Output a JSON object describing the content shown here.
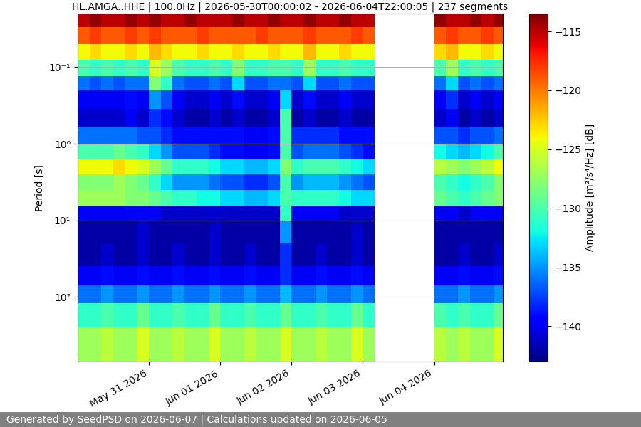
{
  "chart_data": {
    "type": "heatmap",
    "title": "HL.AMGA..HHE | 100.0Hz | 2026-05-30T00:00:02 - 2026-06-04T22:00:05 | 237 segments",
    "y_label": "Period [s]",
    "footer": "Generated by SeedPSD on 2026-06-07 | Calculations updated on 2026-06-05",
    "color": "jet",
    "log": "y",
    "grid": "y",
    "x": [
      "2026-05-30T00:00",
      "2026-05-30T04:00",
      "2026-05-30T08:00",
      "2026-05-30T12:00",
      "2026-05-30T16:00",
      "2026-05-30T20:00",
      "2026-05-31T00:00",
      "2026-05-31T04:00",
      "2026-05-31T08:00",
      "2026-05-31T12:00",
      "2026-05-31T16:00",
      "2026-05-31T20:00",
      "2026-06-01T00:00",
      "2026-06-01T04:00",
      "2026-06-01T08:00",
      "2026-06-01T12:00",
      "2026-06-01T16:00",
      "2026-06-01T20:00",
      "2026-06-02T00:00",
      "2026-06-02T04:00",
      "2026-06-02T08:00",
      "2026-06-02T12:00",
      "2026-06-02T16:00",
      "2026-06-02T20:00",
      "2026-06-03T00:00",
      "2026-06-03T04:00",
      "2026-06-03T08:00",
      "2026-06-03T12:00",
      "2026-06-03T16:00",
      "2026-06-03T20:00",
      "2026-06-04T00:00",
      "2026-06-04T04:00",
      "2026-06-04T08:00",
      "2026-06-04T12:00",
      "2026-06-04T16:00",
      "2026-06-04T20:00",
      "2026-06-05T00:00"
    ],
    "y": [
      0.02,
      0.03,
      0.05,
      0.08,
      0.13,
      0.2,
      0.35,
      0.6,
      1.0,
      1.6,
      2.5,
      4,
      6.5,
      10,
      20,
      40,
      70,
      120,
      250,
      700
    ],
    "xlim": [
      "2026-05-30T00:00",
      "2026-06-04T23:00"
    ],
    "xticks": [
      {
        "value": "2026-05-31T00:00",
        "label": "May 31 2026"
      },
      {
        "value": "2026-06-01T00:00",
        "label": "Jun 01 2026"
      },
      {
        "value": "2026-06-02T00:00",
        "label": "Jun 02 2026"
      },
      {
        "value": "2026-06-03T00:00",
        "label": "Jun 03 2026"
      },
      {
        "value": "2026-06-04T00:00",
        "label": "Jun 04 2026"
      }
    ],
    "ylim": [
      700,
      0.02
    ],
    "yticks": [
      {
        "value": 0.1,
        "label": "10⁻¹"
      },
      {
        "value": 1,
        "label": "10⁰"
      },
      {
        "value": 10,
        "label": "10¹"
      },
      {
        "value": 100,
        "label": "10²"
      }
    ],
    "colorbar": {
      "label": "Amplitude [m²/s⁴/Hz] [dB]",
      "range": [
        -143,
        -113.5
      ],
      "ticks": [
        {
          "value": -140,
          "label": "−140"
        },
        {
          "value": -135,
          "label": "−135"
        },
        {
          "value": -130,
          "label": "−130"
        },
        {
          "value": -125,
          "label": "−125"
        },
        {
          "value": -120,
          "label": "−120"
        },
        {
          "value": -115,
          "label": "−115"
        }
      ]
    },
    "cells": [
      [
        -115,
        -114,
        -115,
        -115,
        -114,
        -115,
        -114,
        -115,
        -115,
        -114,
        -115,
        -115,
        -115,
        -114,
        -115,
        -115,
        -114,
        -115,
        -115,
        -114,
        -115,
        -115,
        -114,
        -115,
        -115,
        null,
        null,
        null,
        null,
        null,
        -114,
        -115,
        -115,
        -114,
        -115,
        -114
      ],
      [
        -119,
        -118,
        -119,
        -119,
        -118,
        -119,
        -118,
        -119,
        -119,
        -119,
        -118,
        -119,
        -119,
        -119,
        -119,
        -118,
        -119,
        -119,
        -119,
        -118,
        -119,
        -119,
        -119,
        -118,
        -119,
        null,
        null,
        null,
        null,
        null,
        -119,
        -118,
        -119,
        -119,
        -118,
        -119
      ],
      [
        -124,
        -123,
        -124,
        -124,
        -123,
        -124,
        -122,
        -123,
        -124,
        -124,
        -123,
        -124,
        -124,
        -123,
        -124,
        -124,
        -123,
        -124,
        -124,
        -122,
        -124,
        -124,
        -123,
        -124,
        -124,
        null,
        null,
        null,
        null,
        null,
        -123,
        -122,
        -124,
        -124,
        -123,
        -124
      ],
      [
        -130,
        -131,
        -130,
        -131,
        -130,
        -131,
        -125,
        -127,
        -130,
        -131,
        -131,
        -130,
        -131,
        -128,
        -131,
        -131,
        -130,
        -130,
        -131,
        -127,
        -131,
        -131,
        -130,
        -131,
        -131,
        null,
        null,
        null,
        null,
        null,
        -130,
        -127,
        -131,
        -130,
        -131,
        -130
      ],
      [
        -136,
        -137,
        -136,
        -137,
        -136,
        -136,
        -128,
        -131,
        -136,
        -137,
        -137,
        -136,
        -137,
        -133,
        -137,
        -137,
        -136,
        -136,
        -137,
        -133,
        -137,
        -137,
        -136,
        -137,
        -137,
        null,
        null,
        null,
        null,
        null,
        -136,
        -133,
        -137,
        -136,
        -137,
        -136
      ],
      [
        -140,
        -140,
        -140,
        -140,
        -139,
        -140,
        -135,
        -137,
        -140,
        -141,
        -141,
        -140,
        -141,
        -139,
        -141,
        -141,
        -140,
        -133,
        -141,
        -139,
        -141,
        -141,
        -140,
        -141,
        -141,
        null,
        null,
        null,
        null,
        null,
        -140,
        -138,
        -141,
        -140,
        -141,
        -140
      ],
      [
        -141,
        -141,
        -141,
        -141,
        -140,
        -141,
        -138,
        -139,
        -141,
        -142,
        -142,
        -141,
        -142,
        -141,
        -142,
        -142,
        -141,
        -130,
        -142,
        -141,
        -142,
        -142,
        -141,
        -142,
        -142,
        null,
        null,
        null,
        null,
        null,
        -141,
        -140,
        -142,
        -141,
        -142,
        -141
      ],
      [
        -136,
        -136,
        -136,
        -136,
        -136,
        -137,
        -137,
        -138,
        -139,
        -139,
        -139,
        -139,
        -139,
        -139,
        -140,
        -140,
        -139,
        -130,
        -138,
        -138,
        -138,
        -138,
        -139,
        -139,
        -139,
        null,
        null,
        null,
        null,
        null,
        -137,
        -137,
        -138,
        -137,
        -137,
        -136
      ],
      [
        -130,
        -130,
        -130,
        -129,
        -130,
        -131,
        -133,
        -135,
        -137,
        -137,
        -137,
        -138,
        -139,
        -139,
        -140,
        -140,
        -139,
        -130,
        -137,
        -136,
        -136,
        -136,
        -137,
        -138,
        -139,
        null,
        null,
        null,
        null,
        null,
        -132,
        -133,
        -134,
        -133,
        -132,
        -130
      ],
      [
        -124,
        -124,
        -124,
        -123,
        -124,
        -125,
        -127,
        -129,
        -131,
        -131,
        -131,
        -132,
        -133,
        -133,
        -134,
        -134,
        -133,
        -128,
        -131,
        -130,
        -130,
        -130,
        -131,
        -132,
        -133,
        null,
        null,
        null,
        null,
        null,
        -126,
        -127,
        -128,
        -127,
        -126,
        -124
      ],
      [
        -128,
        -128,
        -128,
        -127,
        -128,
        -129,
        -131,
        -133,
        -135,
        -135,
        -135,
        -136,
        -137,
        -137,
        -138,
        -138,
        -137,
        -130,
        -135,
        -134,
        -134,
        -134,
        -135,
        -136,
        -137,
        null,
        null,
        null,
        null,
        null,
        -130,
        -131,
        -132,
        -131,
        -130,
        -128
      ],
      [
        -127,
        -127,
        -127,
        -127,
        -128,
        -128,
        -129,
        -130,
        -131,
        -131,
        -132,
        -132,
        -133,
        -133,
        -134,
        -134,
        -133,
        -130,
        -131,
        -131,
        -131,
        -131,
        -132,
        -133,
        -133,
        null,
        null,
        null,
        null,
        null,
        -129,
        -130,
        -131,
        -130,
        -129,
        -128
      ],
      [
        -140,
        -140,
        -140,
        -140,
        -140,
        -140,
        -140,
        -141,
        -141,
        -141,
        -141,
        -141,
        -141,
        -141,
        -141,
        -141,
        -141,
        -131,
        -140,
        -140,
        -140,
        -140,
        -141,
        -141,
        -141,
        null,
        null,
        null,
        null,
        null,
        -140,
        -140,
        -141,
        -140,
        -140,
        -140
      ],
      [
        -142,
        -142,
        -142,
        -142,
        -142,
        -141,
        -142,
        -142,
        -142,
        -142,
        -142,
        -141,
        -142,
        -142,
        -142,
        -142,
        -142,
        -135,
        -142,
        -142,
        -142,
        -142,
        -142,
        -141,
        -142,
        null,
        null,
        null,
        null,
        null,
        -142,
        -142,
        -142,
        -142,
        -142,
        -142
      ],
      [
        -142,
        -142,
        -141,
        -142,
        -142,
        -141,
        -142,
        -142,
        -141,
        -142,
        -142,
        -141,
        -142,
        -142,
        -141,
        -142,
        -142,
        -138,
        -142,
        -142,
        -141,
        -142,
        -142,
        -141,
        -142,
        null,
        null,
        null,
        null,
        null,
        -142,
        -142,
        -141,
        -142,
        -142,
        -141
      ],
      [
        -140,
        -140,
        -139,
        -140,
        -140,
        -139,
        -140,
        -140,
        -139,
        -140,
        -140,
        -139,
        -140,
        -140,
        -139,
        -140,
        -140,
        -138,
        -140,
        -140,
        -139,
        -140,
        -140,
        -139,
        -140,
        null,
        null,
        null,
        null,
        null,
        -140,
        -140,
        -139,
        -140,
        -140,
        -139
      ],
      [
        -136,
        -136,
        -135,
        -136,
        -136,
        -135,
        -136,
        -136,
        -135,
        -136,
        -136,
        -135,
        -136,
        -136,
        -135,
        -136,
        -136,
        -134,
        -136,
        -136,
        -135,
        -136,
        -136,
        -135,
        -136,
        null,
        null,
        null,
        null,
        null,
        -136,
        -136,
        -135,
        -136,
        -136,
        -135
      ],
      [
        -131,
        -131,
        -130,
        -131,
        -131,
        -129,
        -131,
        -131,
        -130,
        -131,
        -131,
        -129,
        -131,
        -131,
        -130,
        -131,
        -131,
        -129,
        -131,
        -131,
        -130,
        -131,
        -131,
        -129,
        -131,
        null,
        null,
        null,
        null,
        null,
        -130,
        -131,
        -130,
        -131,
        -131,
        -129
      ],
      [
        -127,
        -127,
        -126,
        -127,
        -127,
        -125,
        -127,
        -127,
        -126,
        -127,
        -127,
        -125,
        -127,
        -127,
        -126,
        -127,
        -127,
        -125,
        -127,
        -127,
        -126,
        -127,
        -127,
        -125,
        -127,
        null,
        null,
        null,
        null,
        null,
        -126,
        -127,
        -126,
        -127,
        -127,
        -125
      ]
    ]
  }
}
